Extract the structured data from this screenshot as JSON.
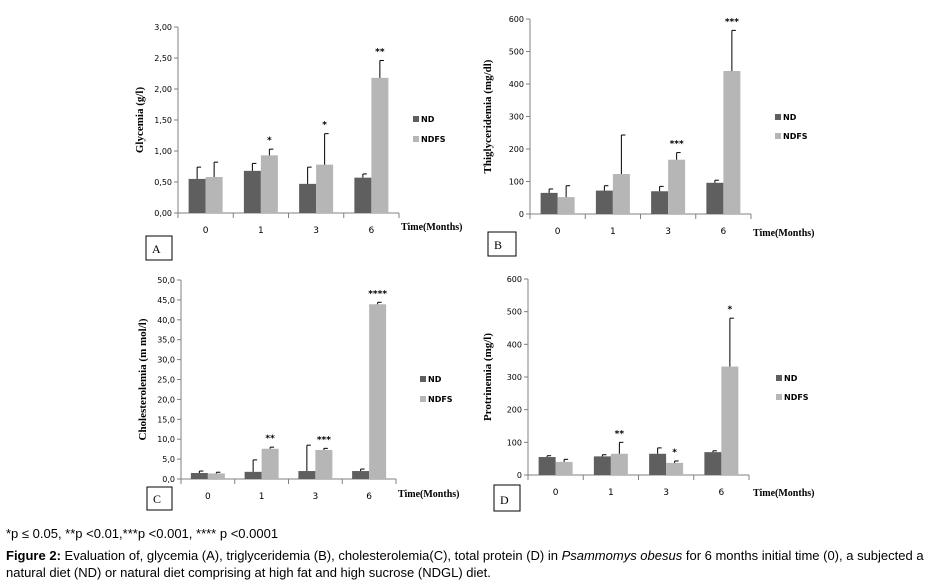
{
  "chart_data": [
    {
      "type": "bar",
      "panel_label": "A",
      "ylabel": "Glycemia (g/l)",
      "xlabel": "Time(Months)",
      "categories": [
        "0",
        "1",
        "3",
        "6"
      ],
      "yticks": [
        "0,00",
        "0,50",
        "1,00",
        "1,50",
        "2,00",
        "2,50",
        "3,00"
      ],
      "ylim": [
        0,
        3
      ],
      "series": [
        {
          "name": "ND",
          "values": [
            0.55,
            0.68,
            0.47,
            0.57
          ],
          "errors": [
            0.19,
            0.12,
            0.27,
            0.06
          ]
        },
        {
          "name": "NDFS",
          "values": [
            0.58,
            0.93,
            0.78,
            2.18
          ],
          "errors": [
            0.24,
            0.1,
            0.5,
            0.28
          ]
        }
      ],
      "annotations": [
        "",
        "*",
        "*",
        "**"
      ],
      "legend": "right"
    },
    {
      "type": "bar",
      "panel_label": "B",
      "ylabel": "Thiglyceridemia (mg/dl)",
      "xlabel": "Time(Months)",
      "categories": [
        "0",
        "1",
        "3",
        "6"
      ],
      "yticks": [
        "0",
        "100",
        "200",
        "300",
        "400",
        "500",
        "600"
      ],
      "ylim": [
        0,
        600
      ],
      "series": [
        {
          "name": "ND",
          "values": [
            65,
            72,
            70,
            96
          ],
          "errors": [
            12,
            15,
            15,
            8
          ]
        },
        {
          "name": "NDFS",
          "values": [
            52,
            123,
            167,
            440
          ],
          "errors": [
            35,
            120,
            22,
            125
          ]
        }
      ],
      "annotations": [
        "",
        "",
        "***",
        "***"
      ],
      "legend": "right"
    },
    {
      "type": "bar",
      "panel_label": "C",
      "ylabel": "Cholesterolemia (m mol/l)",
      "xlabel": "Time(Months)",
      "categories": [
        "0",
        "1",
        "3",
        "6"
      ],
      "yticks": [
        "0,0",
        "5,0",
        "10,0",
        "15,0",
        "20,0",
        "25,0",
        "30,0",
        "35,0",
        "40,0",
        "45,0",
        "50,0"
      ],
      "ylim": [
        0,
        50
      ],
      "series": [
        {
          "name": "ND",
          "values": [
            1.5,
            1.8,
            2.0,
            2.0
          ],
          "errors": [
            0.5,
            3.0,
            6.5,
            0.5
          ]
        },
        {
          "name": "NDFS",
          "values": [
            1.4,
            7.6,
            7.3,
            43.9
          ],
          "errors": [
            0.3,
            0.4,
            0.4,
            0.5
          ]
        }
      ],
      "annotations": [
        "",
        "**",
        "***",
        "****"
      ],
      "legend": "right"
    },
    {
      "type": "bar",
      "panel_label": "D",
      "ylabel": "Protrinemia (mg/l)",
      "xlabel": "Time(Months)",
      "categories": [
        "0",
        "1",
        "3",
        "6"
      ],
      "yticks": [
        "0",
        "100",
        "200",
        "300",
        "400",
        "500",
        "600"
      ],
      "ylim": [
        0,
        600
      ],
      "series": [
        {
          "name": "ND",
          "values": [
            55,
            57,
            65,
            70
          ],
          "errors": [
            4,
            5,
            18,
            4
          ]
        },
        {
          "name": "NDFS",
          "values": [
            40,
            65,
            37,
            332
          ],
          "errors": [
            8,
            35,
            6,
            148
          ]
        }
      ],
      "annotations": [
        "",
        "**",
        "*",
        "*"
      ],
      "legend": "right"
    }
  ],
  "colors": {
    "nd": "#5f5f5f",
    "ndfs": "#b6b6b6",
    "axis": "#808080",
    "frame": "#000000"
  },
  "footnote": "*p ≤ 0.05, **p <0.01,***p <0.001, **** p <0.0001",
  "caption": {
    "lead": "Figure 2:",
    "part1": " Evaluation of, glycemia (A), triglyceridemia (B), cholesterolemia(C), total protein (D) in ",
    "species": "Psammomys obesus",
    "part2": " for 6 months initial time (0), a subjected a natural diet (ND) or natural diet comprising at high fat and high sucrose (NDGL) diet."
  }
}
